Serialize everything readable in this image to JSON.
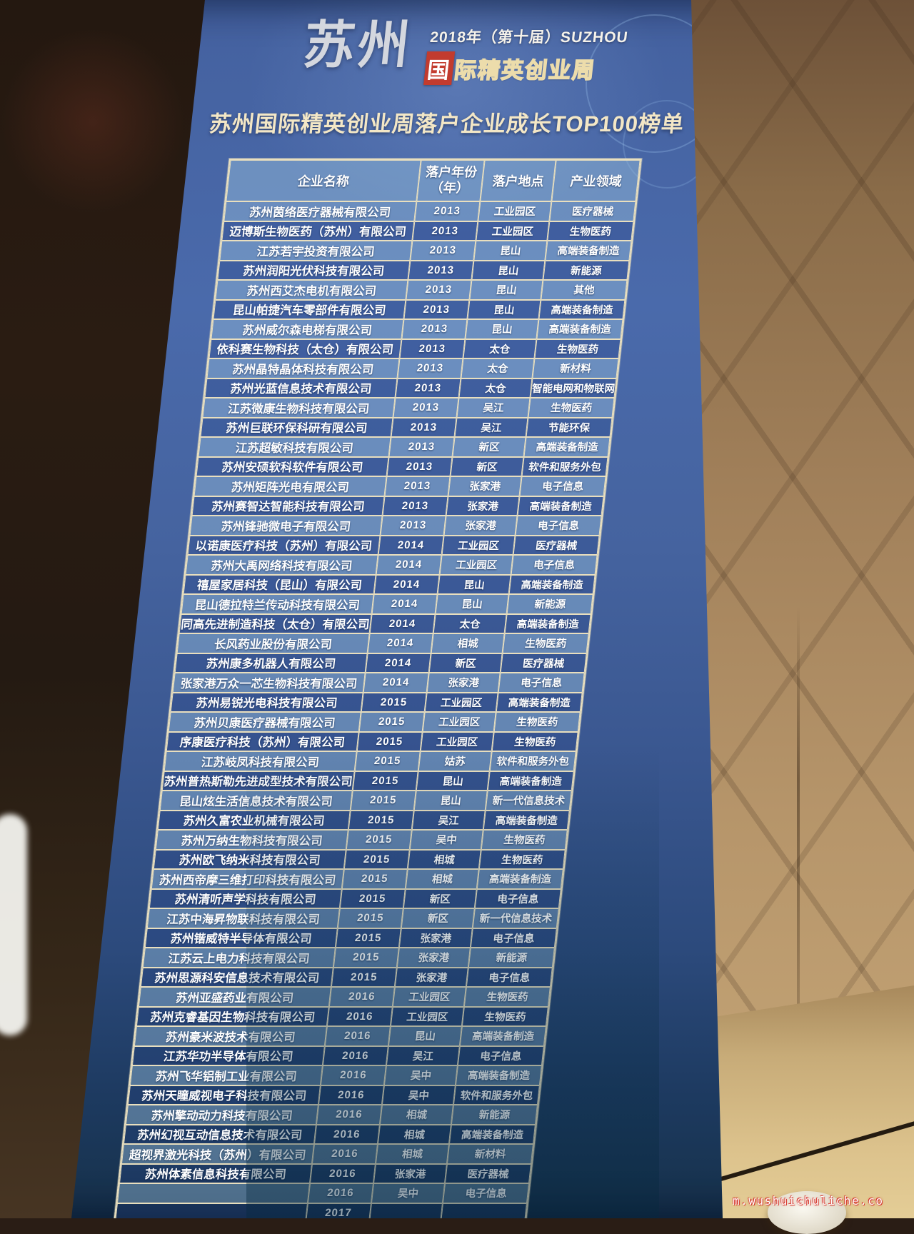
{
  "page": {
    "watermark": "m.wushuichuliche.co"
  },
  "colors": {
    "banner_blue": "#44619f",
    "accent_red": "#c23b2e",
    "cream": "#f3e7c6",
    "cell_border": "#e9dfbe",
    "wall_tan": "#b6956a"
  },
  "banner": {
    "brand": {
      "city": "苏州",
      "year_line": "2018年（第十届）SUZHOU",
      "logo_first_char": "国",
      "logo_rest_chars": "际精英创业周",
      "logo_full": "国际精英创业周"
    },
    "title": "苏州国际精英创业周落户企业成长TOP100榜单",
    "table": {
      "headers": {
        "company": "企业名称",
        "year_line1": "落户年份",
        "year_line2": "（年）",
        "location": "落户地点",
        "industry": "产业领域"
      },
      "rows": [
        [
          "苏州茵络医疗器械有限公司",
          "2013",
          "工业园区",
          "医疗器械"
        ],
        [
          "迈博斯生物医药（苏州）有限公司",
          "2013",
          "工业园区",
          "生物医药"
        ],
        [
          "江苏若宇投资有限公司",
          "2013",
          "昆山",
          "高端装备制造"
        ],
        [
          "苏州润阳光伏科技有限公司",
          "2013",
          "昆山",
          "新能源"
        ],
        [
          "苏州西艾杰电机有限公司",
          "2013",
          "昆山",
          "其他"
        ],
        [
          "昆山帕捷汽车零部件有限公司",
          "2013",
          "昆山",
          "高端装备制造"
        ],
        [
          "苏州威尔森电梯有限公司",
          "2013",
          "昆山",
          "高端装备制造"
        ],
        [
          "依科赛生物科技（太仓）有限公司",
          "2013",
          "太仓",
          "生物医药"
        ],
        [
          "苏州晶特晶体科技有限公司",
          "2013",
          "太仓",
          "新材料"
        ],
        [
          "苏州光蓝信息技术有限公司",
          "2013",
          "太仓",
          "智能电网和物联网"
        ],
        [
          "江苏微康生物科技有限公司",
          "2013",
          "吴江",
          "生物医药"
        ],
        [
          "苏州巨联环保科研有限公司",
          "2013",
          "吴江",
          "节能环保"
        ],
        [
          "江苏超敏科技有限公司",
          "2013",
          "新区",
          "高端装备制造"
        ],
        [
          "苏州安硕软科软件有限公司",
          "2013",
          "新区",
          "软件和服务外包"
        ],
        [
          "苏州矩阵光电有限公司",
          "2013",
          "张家港",
          "电子信息"
        ],
        [
          "苏州赛智达智能科技有限公司",
          "2013",
          "张家港",
          "高端装备制造"
        ],
        [
          "苏州锋驰微电子有限公司",
          "2013",
          "张家港",
          "电子信息"
        ],
        [
          "以诺康医疗科技（苏州）有限公司",
          "2014",
          "工业园区",
          "医疗器械"
        ],
        [
          "苏州大禹网络科技有限公司",
          "2014",
          "工业园区",
          "电子信息"
        ],
        [
          "禧屋家居科技（昆山）有限公司",
          "2014",
          "昆山",
          "高端装备制造"
        ],
        [
          "昆山德拉特兰传动科技有限公司",
          "2014",
          "昆山",
          "新能源"
        ],
        [
          "同高先进制造科技（太仓）有限公司",
          "2014",
          "太仓",
          "高端装备制造"
        ],
        [
          "长风药业股份有限公司",
          "2014",
          "相城",
          "生物医药"
        ],
        [
          "苏州康多机器人有限公司",
          "2014",
          "新区",
          "医疗器械"
        ],
        [
          "张家港万众一芯生物科技有限公司",
          "2014",
          "张家港",
          "电子信息"
        ],
        [
          "苏州易锐光电科技有限公司",
          "2015",
          "工业园区",
          "高端装备制造"
        ],
        [
          "苏州贝康医疗器械有限公司",
          "2015",
          "工业园区",
          "生物医药"
        ],
        [
          "序康医疗科技（苏州）有限公司",
          "2015",
          "工业园区",
          "生物医药"
        ],
        [
          "江苏岐凤科技有限公司",
          "2015",
          "姑苏",
          "软件和服务外包"
        ],
        [
          "苏州普热斯勒先进成型技术有限公司",
          "2015",
          "昆山",
          "高端装备制造"
        ],
        [
          "昆山炫生活信息技术有限公司",
          "2015",
          "昆山",
          "新一代信息技术"
        ],
        [
          "苏州久富农业机械有限公司",
          "2015",
          "吴江",
          "高端装备制造"
        ],
        [
          "苏州万纳生物科技有限公司",
          "2015",
          "吴中",
          "生物医药"
        ],
        [
          "苏州欧飞纳米科技有限公司",
          "2015",
          "相城",
          "生物医药"
        ],
        [
          "苏州西帝摩三维打印科技有限公司",
          "2015",
          "相城",
          "高端装备制造"
        ],
        [
          "苏州清听声学科技有限公司",
          "2015",
          "新区",
          "电子信息"
        ],
        [
          "江苏中海昇物联科技有限公司",
          "2015",
          "新区",
          "新一代信息技术"
        ],
        [
          "苏州锴威特半导体有限公司",
          "2015",
          "张家港",
          "电子信息"
        ],
        [
          "江苏云上电力科技有限公司",
          "2015",
          "张家港",
          "新能源"
        ],
        [
          "苏州思源科安信息技术有限公司",
          "2015",
          "张家港",
          "电子信息"
        ],
        [
          "苏州亚盛药业有限公司",
          "2016",
          "工业园区",
          "生物医药"
        ],
        [
          "苏州克睿基因生物科技有限公司",
          "2016",
          "工业园区",
          "生物医药"
        ],
        [
          "苏州豪米波技术有限公司",
          "2016",
          "昆山",
          "高端装备制造"
        ],
        [
          "江苏华功半导体有限公司",
          "2016",
          "吴江",
          "电子信息"
        ],
        [
          "苏州飞华铝制工业有限公司",
          "2016",
          "吴中",
          "高端装备制造"
        ],
        [
          "苏州天瞳威视电子科技有限公司",
          "2016",
          "吴中",
          "软件和服务外包"
        ],
        [
          "苏州擎动动力科技有限公司",
          "2016",
          "相城",
          "新能源"
        ],
        [
          "苏州幻视互动信息技术有限公司",
          "2016",
          "相城",
          "高端装备制造"
        ],
        [
          "超视界激光科技（苏州）有限公司",
          "2016",
          "相城",
          "新材料"
        ],
        [
          "苏州体素信息科技有限公司",
          "2016",
          "张家港",
          "医疗器械"
        ],
        [
          "",
          "2016",
          "吴中",
          "电子信息"
        ],
        [
          "",
          "2017",
          "",
          ""
        ]
      ]
    }
  }
}
